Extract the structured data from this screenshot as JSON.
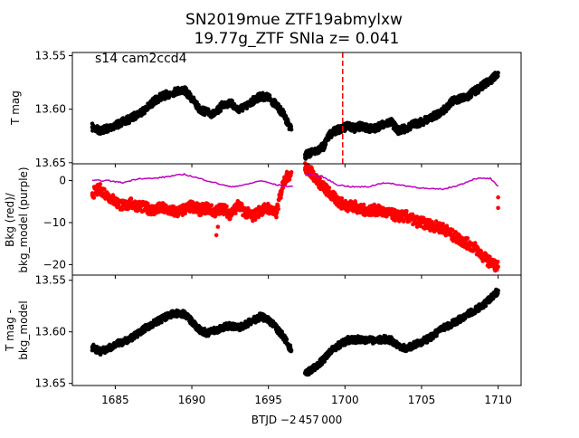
{
  "figure": {
    "title_line1": "SN2019mue  ZTF19abmylxw",
    "title_line2": "19.77g_ZTF SNIa z= 0.041",
    "xlabel": "BTJD −2 457 000"
  },
  "panels": {
    "top": {
      "ylabel": "T mag",
      "annotation": "s14 cam2ccd4"
    },
    "middle": {
      "ylabel_line1": "Bkg (red)/",
      "ylabel_line2": "bkg_model (purple)"
    },
    "bottom": {
      "ylabel_line1": "T mag -",
      "ylabel_line2": "bkg_model"
    }
  },
  "colors": {
    "points": "#000000",
    "bkg": "#ff0000",
    "bkg_model": "#bf00bf",
    "marker_line": "#ff0000"
  },
  "chart_data": [
    {
      "type": "scatter",
      "panel": "top",
      "ylabel": "T mag",
      "xlim": [
        1682.2,
        1711.5
      ],
      "ylim": [
        13.651,
        13.547
      ],
      "y_inverted": true,
      "yticks": [
        "13.55",
        "13.60",
        "13.65"
      ],
      "vertical_line_x": 1699.85,
      "series": [
        {
          "values_x": [
            1683.5,
            1684.0,
            1684.5,
            1685.0,
            1685.5,
            1686.0,
            1686.5,
            1687.0,
            1687.5,
            1688.0,
            1688.5,
            1689.0,
            1689.5,
            1690.0,
            1690.5,
            1691.0,
            1691.5,
            1692.0,
            1692.5,
            1693.0,
            1693.5,
            1694.0,
            1694.5,
            1695.0,
            1695.5,
            1696.0,
            1696.5,
            1697.4,
            1697.8,
            1698.2,
            1698.6,
            1699.0,
            1699.4,
            1699.8,
            1700.2,
            1700.6,
            1701.0,
            1701.5,
            1702.0,
            1702.5,
            1703.0,
            1703.5,
            1704.0,
            1704.5,
            1705.0,
            1705.5,
            1706.0,
            1706.5,
            1707.0,
            1707.5,
            1708.0,
            1708.5,
            1709.0,
            1709.5,
            1710.0
          ],
          "values_y": [
            13.617,
            13.62,
            13.618,
            13.615,
            13.612,
            13.609,
            13.604,
            13.6,
            13.593,
            13.588,
            13.586,
            13.583,
            13.582,
            13.59,
            13.6,
            13.603,
            13.605,
            13.596,
            13.594,
            13.6,
            13.598,
            13.592,
            13.588,
            13.589,
            13.596,
            13.605,
            13.619,
            13.643,
            13.641,
            13.638,
            13.635,
            13.624,
            13.62,
            13.618,
            13.616,
            13.618,
            13.616,
            13.618,
            13.618,
            13.614,
            13.612,
            13.62,
            13.618,
            13.614,
            13.612,
            13.609,
            13.605,
            13.6,
            13.593,
            13.59,
            13.588,
            13.583,
            13.578,
            13.573,
            13.566
          ]
        }
      ]
    },
    {
      "type": "line",
      "panel": "middle",
      "ylabel": "Bkg (red)/ bkg_model (purple)",
      "xlim": [
        1682.2,
        1711.5
      ],
      "ylim": [
        -22.5,
        4.0
      ],
      "yticks": [
        "0",
        "−10",
        "−20"
      ],
      "series": [
        {
          "name": "Bkg (red)",
          "x": [
            1683.5,
            1684.0,
            1684.5,
            1685.0,
            1685.5,
            1686.0,
            1686.5,
            1687.0,
            1687.5,
            1688.0,
            1688.5,
            1689.0,
            1689.5,
            1690.0,
            1690.5,
            1691.0,
            1691.5,
            1692.0,
            1692.5,
            1693.0,
            1693.5,
            1694.0,
            1694.5,
            1695.0,
            1695.5,
            1696.0,
            1696.5,
            1697.4,
            1697.8,
            1698.2,
            1698.6,
            1699.0,
            1699.4,
            1699.8,
            1700.2,
            1700.6,
            1701.0,
            1701.5,
            1702.0,
            1702.5,
            1703.0,
            1703.5,
            1704.0,
            1704.5,
            1705.0,
            1705.5,
            1706.0,
            1706.5,
            1707.0,
            1707.5,
            1708.0,
            1708.5,
            1709.0,
            1709.5,
            1710.0
          ],
          "y": [
            -3.0,
            -2.0,
            -3.5,
            -5.0,
            -6.0,
            -5.5,
            -6.0,
            -6.5,
            -7.0,
            -6.5,
            -7.0,
            -7.5,
            -7.0,
            -6.0,
            -7.0,
            -6.5,
            -7.5,
            -6.5,
            -8.0,
            -6.0,
            -7.5,
            -8.5,
            -7.0,
            -6.5,
            -8.0,
            0.0,
            2.0,
            3.0,
            2.0,
            0.0,
            -1.5,
            -3.0,
            -4.5,
            -5.5,
            -6.0,
            -6.0,
            -7.0,
            -7.0,
            -7.0,
            -7.5,
            -8.0,
            -8.5,
            -8.5,
            -9.5,
            -10.0,
            -10.5,
            -11.0,
            -11.5,
            -13.0,
            -14.0,
            -15.0,
            -16.0,
            -18.0,
            -19.5,
            -20.5
          ]
        },
        {
          "name": "bkg_model (purple)",
          "x": [
            1683.5,
            1684.5,
            1685.5,
            1686.5,
            1687.5,
            1688.5,
            1689.5,
            1690.5,
            1691.5,
            1692.5,
            1693.5,
            1694.5,
            1695.5,
            1696.5,
            1697.5,
            1698.5,
            1699.5,
            1700.5,
            1701.5,
            1702.5,
            1703.5,
            1704.5,
            1705.5,
            1706.5,
            1707.5,
            1708.5,
            1709.5,
            1710.0
          ],
          "y": [
            0.0,
            0.0,
            -0.5,
            0.5,
            0.5,
            1.0,
            1.5,
            0.5,
            -0.5,
            -1.5,
            -1.0,
            0.0,
            -1.0,
            -1.5,
            1.5,
            1.0,
            -1.0,
            -1.5,
            -1.5,
            -0.5,
            -1.0,
            -1.5,
            -2.0,
            -2.0,
            -1.0,
            0.5,
            0.5,
            -1.5
          ]
        }
      ]
    },
    {
      "type": "scatter",
      "panel": "bottom",
      "ylabel": "T mag - bkg_model",
      "xlabel": "BTJD −2 457 000",
      "xlim": [
        1682.2,
        1711.5
      ],
      "ylim": [
        13.652,
        13.545
      ],
      "y_inverted": true,
      "yticks": [
        "13.55",
        "13.60",
        "13.65"
      ],
      "xticks": [
        1685,
        1690,
        1695,
        1700,
        1705,
        1710
      ],
      "series": [
        {
          "values_x": [
            1683.5,
            1684.0,
            1684.5,
            1685.0,
            1685.5,
            1686.0,
            1686.5,
            1687.0,
            1687.5,
            1688.0,
            1688.5,
            1689.0,
            1689.5,
            1690.0,
            1690.5,
            1691.0,
            1691.5,
            1692.0,
            1692.5,
            1693.0,
            1693.5,
            1694.0,
            1694.5,
            1695.0,
            1695.5,
            1696.0,
            1696.5,
            1697.4,
            1697.8,
            1698.2,
            1698.6,
            1699.0,
            1699.4,
            1699.8,
            1700.2,
            1700.6,
            1701.0,
            1701.5,
            1702.0,
            1702.5,
            1703.0,
            1703.5,
            1704.0,
            1704.5,
            1705.0,
            1705.5,
            1706.0,
            1706.5,
            1707.0,
            1707.5,
            1708.0,
            1708.5,
            1709.0,
            1709.5,
            1710.0
          ],
          "values_y": [
            13.615,
            13.619,
            13.617,
            13.612,
            13.61,
            13.606,
            13.602,
            13.596,
            13.592,
            13.588,
            13.584,
            13.582,
            13.583,
            13.59,
            13.598,
            13.601,
            13.599,
            13.596,
            13.594,
            13.596,
            13.593,
            13.589,
            13.585,
            13.588,
            13.596,
            13.605,
            13.618,
            13.64,
            13.637,
            13.632,
            13.627,
            13.62,
            13.615,
            13.611,
            13.608,
            13.608,
            13.607,
            13.608,
            13.609,
            13.607,
            13.608,
            13.613,
            13.616,
            13.613,
            13.61,
            13.606,
            13.601,
            13.596,
            13.592,
            13.588,
            13.583,
            13.579,
            13.574,
            13.568,
            13.56
          ]
        }
      ]
    }
  ]
}
